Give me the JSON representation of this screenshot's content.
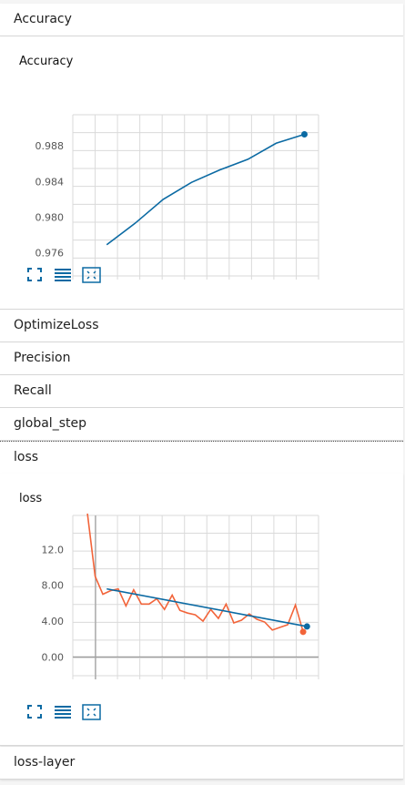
{
  "groups": {
    "accuracy": "Accuracy",
    "optimize_loss": "OptimizeLoss",
    "precision": "Precision",
    "recall": "Recall",
    "global_step": "global_step",
    "loss": "loss",
    "loss_layer": "loss-layer"
  },
  "colors": {
    "accent": "#0b6aa3",
    "raw": "#f2643a",
    "grid": "#dadada"
  },
  "icons": [
    "expand-icon",
    "data-table-icon",
    "fit-domain-icon"
  ],
  "chart_data": [
    {
      "type": "line",
      "title": "Accuracy",
      "xlabel": "",
      "ylabel": "",
      "yticks": [
        "0.976",
        "0.980",
        "0.984",
        "0.988"
      ],
      "ylim": [
        0.9734,
        0.9915
      ],
      "x": [
        0,
        1,
        2,
        3,
        4,
        5,
        6,
        7
      ],
      "series": [
        {
          "values": [
            0.9769,
            0.9793,
            0.982,
            0.9839,
            0.9853,
            0.9865,
            0.9883,
            0.9893
          ]
        }
      ]
    },
    {
      "type": "line",
      "title": "loss",
      "xlabel": "",
      "ylabel": "",
      "yticks": [
        "0.00",
        "4.00",
        "8.00",
        "12.0"
      ],
      "ylim": [
        -2.1,
        15.8
      ],
      "x": [
        0,
        1,
        2,
        3,
        4,
        5,
        6,
        7,
        8,
        9,
        10,
        11,
        12,
        13,
        14,
        15,
        16,
        17,
        18,
        19,
        20,
        21,
        22,
        23,
        24,
        25,
        26,
        27,
        28
      ],
      "series": [
        {
          "values": [
            16.0,
            9.0,
            7.0,
            7.4,
            7.6,
            5.7,
            7.5,
            5.9,
            5.9,
            6.5,
            5.3,
            6.9,
            5.2,
            4.9,
            4.7,
            4.0,
            5.3,
            4.3,
            5.9,
            3.8,
            4.1,
            4.8,
            4.2,
            3.9,
            3.0,
            3.3,
            3.6,
            5.8,
            2.8
          ]
        },
        {
          "x": [
            2.5,
            28.5
          ],
          "values": [
            7.6,
            3.4
          ]
        }
      ]
    }
  ]
}
